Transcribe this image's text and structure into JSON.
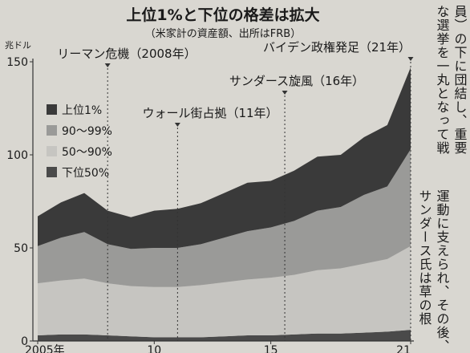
{
  "colors": {
    "paper": "#d9d7d1",
    "top1": "#3a3a3a",
    "p90_99": "#9a9a98",
    "p50_90": "#c6c5c1",
    "bottom50": "#4a4a4a",
    "axis": "#333333",
    "text": "#1a1a1a"
  },
  "chart_data": {
    "type": "area",
    "title": "上位1%と下位の格差は拡大",
    "subtitle": "（米家計の資産額、出所はFRB）",
    "ylabel": "兆ドル",
    "xlabel": "",
    "ylim": [
      0,
      150
    ],
    "yticks": [
      0,
      50,
      100,
      150
    ],
    "xlim": [
      2005,
      2021
    ],
    "xticks": [
      {
        "value": 2005,
        "label": "2005年"
      },
      {
        "value": 2010,
        "label": "10"
      },
      {
        "value": 2015,
        "label": "15"
      },
      {
        "value": 2021,
        "label": "21"
      }
    ],
    "stacked": true,
    "x": [
      2005,
      2006,
      2007,
      2008,
      2009,
      2010,
      2011,
      2012,
      2013,
      2014,
      2015,
      2016,
      2017,
      2018,
      2019,
      2020,
      2021
    ],
    "series": [
      {
        "name": "下位50%",
        "colorKey": "bottom50",
        "values": [
          3,
          3.5,
          3.5,
          3,
          2.5,
          2,
          2,
          2,
          2.5,
          3,
          3,
          3.5,
          4,
          4,
          4.5,
          5,
          6
        ]
      },
      {
        "name": "50～90%",
        "colorKey": "p50_90",
        "values": [
          28,
          29,
          30,
          28,
          27,
          27,
          27,
          28,
          29,
          30,
          31,
          32,
          34,
          35,
          37,
          39,
          45
        ]
      },
      {
        "name": "90～99%",
        "colorKey": "p90_99",
        "values": [
          20,
          23,
          25,
          21,
          20,
          21,
          21,
          22,
          24,
          26,
          27,
          29,
          32,
          33,
          37,
          39,
          52
        ]
      },
      {
        "name": "上位1%",
        "colorKey": "top1",
        "values": [
          16,
          19,
          21,
          18,
          17,
          20,
          21,
          22,
          24,
          26,
          25,
          27,
          29,
          28,
          31,
          33,
          44
        ]
      }
    ],
    "legend_position": "left",
    "annotations": [
      {
        "x": 2008,
        "y_top": 143,
        "text": "リーマン危機（2008年）"
      },
      {
        "x": 2011,
        "y_top": 110,
        "text": "ウォール街占拠（11年）"
      },
      {
        "x": 2015.6,
        "y_top": 126,
        "text": "サンダース旋風（16年）"
      },
      {
        "x": 2021,
        "y_top": 150,
        "text": "バイデン政権発足（21年）"
      }
    ]
  },
  "side_text": {
    "columns": [
      "員）の下に団結し、重要",
      "な選挙を一丸となって戦",
      "",
      "運動に支えられ、その後、",
      "サンダース氏は草の根"
    ]
  }
}
